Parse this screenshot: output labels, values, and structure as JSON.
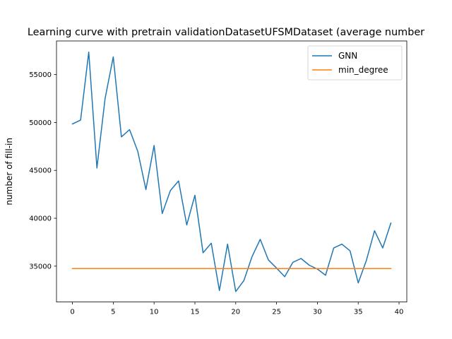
{
  "chart_data": {
    "type": "line",
    "title": "Learning curve with pretrain validationDatasetUFSMDataset (average number",
    "xlabel": "",
    "ylabel": "number of fill-in",
    "xlim": [
      -1.95,
      40.95
    ],
    "ylim": [
      31258,
      58512
    ],
    "xticks": [
      0,
      5,
      10,
      15,
      20,
      25,
      30,
      35,
      40
    ],
    "yticks": [
      35000,
      40000,
      45000,
      50000,
      55000
    ],
    "grid": false,
    "legend_position": "top-right",
    "x": [
      0,
      1,
      2,
      3,
      4,
      5,
      6,
      7,
      8,
      9,
      10,
      11,
      12,
      13,
      14,
      15,
      16,
      17,
      18,
      19,
      20,
      21,
      22,
      23,
      24,
      25,
      26,
      27,
      28,
      29,
      30,
      31,
      32,
      33,
      34,
      35,
      36,
      37,
      38,
      39
    ],
    "series": [
      {
        "name": "GNN",
        "color": "#1f77b4",
        "values": [
          49850,
          50250,
          57350,
          45250,
          52500,
          56850,
          48500,
          49250,
          47000,
          43000,
          47600,
          40500,
          42900,
          43900,
          39300,
          42400,
          36400,
          37400,
          32450,
          37300,
          32350,
          33500,
          36000,
          37800,
          35650,
          34800,
          33900,
          35400,
          35800,
          35100,
          34700,
          34050,
          36900,
          37300,
          36600,
          33250,
          35600,
          38700,
          36900,
          39500
        ]
      },
      {
        "name": "min_degree",
        "color": "#ff7f0e",
        "values": [
          34750,
          34750,
          34750,
          34750,
          34750,
          34750,
          34750,
          34750,
          34750,
          34750,
          34750,
          34750,
          34750,
          34750,
          34750,
          34750,
          34750,
          34750,
          34750,
          34750,
          34750,
          34750,
          34750,
          34750,
          34750,
          34750,
          34750,
          34750,
          34750,
          34750,
          34750,
          34750,
          34750,
          34750,
          34750,
          34750,
          34750,
          34750,
          34750,
          34750
        ]
      }
    ]
  }
}
